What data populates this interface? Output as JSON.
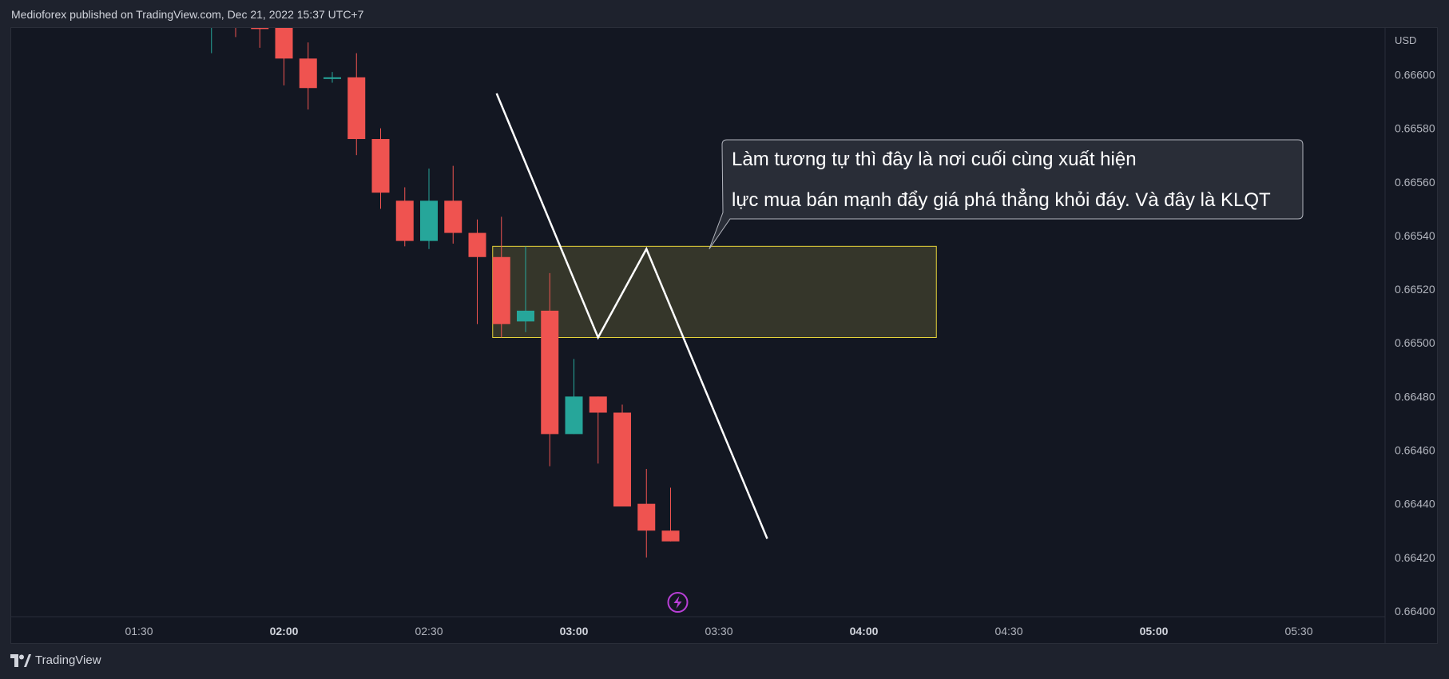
{
  "header": {
    "publisher": "Medioforex published on TradingView.com, Dec 21, 2022 15:37 UTC+7"
  },
  "footer": {
    "brand": "TradingView",
    "logo_icon": "tradingview-logo-icon"
  },
  "colors": {
    "background": "#131722",
    "bull": "#26a69a",
    "bear": "#ef5350",
    "zone_fill": "#3c3c2c",
    "zone_border": "#e6d43a",
    "drawing_line": "#ffffff",
    "callout_bg": "#2a2e39",
    "event_marker": "#b83fd6"
  },
  "chart_data": {
    "type": "candlestick",
    "currency": "USD",
    "y_ticks": [
      0.664,
      0.6642,
      0.6644,
      0.6646,
      0.6648,
      0.665,
      0.6652,
      0.6654,
      0.6656,
      0.6658,
      0.666
    ],
    "y_tick_labels": [
      "0.66400",
      "0.66420",
      "0.66440",
      "0.66460",
      "0.66480",
      "0.66500",
      "0.66520",
      "0.66540",
      "0.66560",
      "0.66580",
      "0.66600"
    ],
    "ylim": [
      0.664,
      0.66618
    ],
    "x_ticks": [
      {
        "label": "01:30",
        "bold": false
      },
      {
        "label": "02:00",
        "bold": true
      },
      {
        "label": "02:30",
        "bold": false
      },
      {
        "label": "03:00",
        "bold": true
      },
      {
        "label": "03:30",
        "bold": false
      },
      {
        "label": "04:00",
        "bold": true
      },
      {
        "label": "04:30",
        "bold": false
      },
      {
        "label": "05:00",
        "bold": true
      },
      {
        "label": "05:30",
        "bold": false
      }
    ],
    "candles": [
      {
        "time": "01:45",
        "open": 0.66618,
        "high": 0.66618,
        "low": 0.66608,
        "close": 0.66618
      },
      {
        "time": "01:50",
        "open": 0.66625,
        "high": 0.6663,
        "low": 0.66614,
        "close": 0.6662
      },
      {
        "time": "01:55",
        "open": 0.66622,
        "high": 0.66628,
        "low": 0.6661,
        "close": 0.66617
      },
      {
        "time": "02:00",
        "open": 0.66618,
        "high": 0.66625,
        "low": 0.66596,
        "close": 0.66606
      },
      {
        "time": "02:05",
        "open": 0.66606,
        "high": 0.66612,
        "low": 0.66587,
        "close": 0.66595
      },
      {
        "time": "02:10",
        "open": 0.66599,
        "high": 0.66601,
        "low": 0.66597,
        "close": 0.66599
      },
      {
        "time": "02:15",
        "open": 0.66599,
        "high": 0.66608,
        "low": 0.6657,
        "close": 0.66576
      },
      {
        "time": "02:20",
        "open": 0.66576,
        "high": 0.6658,
        "low": 0.6655,
        "close": 0.66556
      },
      {
        "time": "02:25",
        "open": 0.66553,
        "high": 0.66558,
        "low": 0.66536,
        "close": 0.66538
      },
      {
        "time": "02:30",
        "open": 0.66538,
        "high": 0.66565,
        "low": 0.66535,
        "close": 0.66553
      },
      {
        "time": "02:35",
        "open": 0.66553,
        "high": 0.66566,
        "low": 0.66537,
        "close": 0.66541
      },
      {
        "time": "02:40",
        "open": 0.66541,
        "high": 0.66546,
        "low": 0.66507,
        "close": 0.66532
      },
      {
        "time": "02:45",
        "open": 0.66532,
        "high": 0.66547,
        "low": 0.66502,
        "close": 0.66507
      },
      {
        "time": "02:50",
        "open": 0.66508,
        "high": 0.66536,
        "low": 0.66504,
        "close": 0.66512
      },
      {
        "time": "02:55",
        "open": 0.66512,
        "high": 0.66526,
        "low": 0.66454,
        "close": 0.66466
      },
      {
        "time": "03:00",
        "open": 0.66466,
        "high": 0.66494,
        "low": 0.66466,
        "close": 0.6648
      },
      {
        "time": "03:05",
        "open": 0.6648,
        "high": 0.6648,
        "low": 0.66455,
        "close": 0.66474
      },
      {
        "time": "03:10",
        "open": 0.66474,
        "high": 0.66477,
        "low": 0.66439,
        "close": 0.66439
      },
      {
        "time": "03:15",
        "open": 0.6644,
        "high": 0.66453,
        "low": 0.6642,
        "close": 0.6643
      },
      {
        "time": "03:20",
        "open": 0.6643,
        "high": 0.66446,
        "low": 0.66426,
        "close": 0.66426
      }
    ],
    "zone": {
      "time_start": "02:45",
      "time_end": "04:15",
      "price_low": 0.66502,
      "price_high": 0.66536
    },
    "drawing_path": [
      {
        "time": "02:44",
        "price": 0.66593
      },
      {
        "time": "03:05",
        "price": 0.66502
      },
      {
        "time": "03:15",
        "price": 0.66535
      },
      {
        "time": "03:40",
        "price": 0.66427
      }
    ],
    "callout": {
      "line1": "Làm tương tự thì đây là nơi cuối cùng xuất hiện",
      "line2": "lực mua bán mạnh đẩy giá phá thẳng khỏi đáy. Và đây là KLQT",
      "pointer_time": "03:28",
      "pointer_price": 0.66535
    },
    "event_marker": {
      "time": "03:20",
      "icon": "lightning-icon"
    }
  }
}
